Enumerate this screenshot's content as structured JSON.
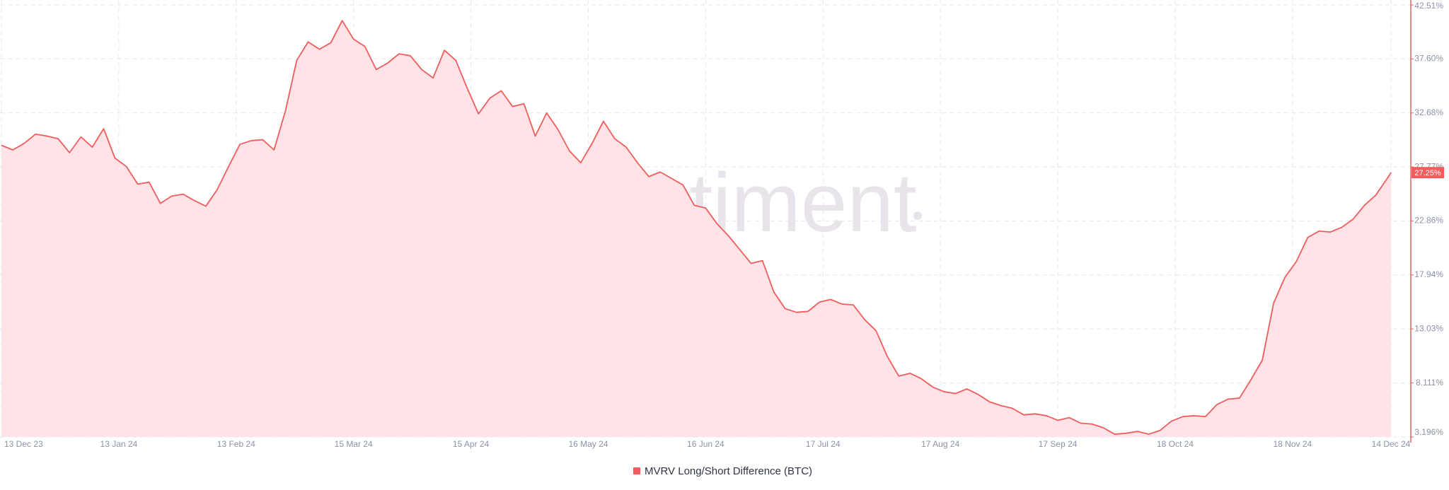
{
  "chart_data": {
    "type": "area",
    "watermark": "santiment",
    "grid": true,
    "x": [
      "2023-12-13",
      "2023-12-16",
      "2023-12-19",
      "2023-12-22",
      "2023-12-25",
      "2023-12-28",
      "2023-12-31",
      "2024-01-03",
      "2024-01-06",
      "2024-01-09",
      "2024-01-12",
      "2024-01-15",
      "2024-01-18",
      "2024-01-21",
      "2024-01-24",
      "2024-01-27",
      "2024-01-30",
      "2024-02-02",
      "2024-02-05",
      "2024-02-08",
      "2024-02-11",
      "2024-02-14",
      "2024-02-17",
      "2024-02-20",
      "2024-02-23",
      "2024-02-26",
      "2024-02-29",
      "2024-03-03",
      "2024-03-06",
      "2024-03-09",
      "2024-03-12",
      "2024-03-15",
      "2024-03-18",
      "2024-03-21",
      "2024-03-24",
      "2024-03-27",
      "2024-03-30",
      "2024-04-02",
      "2024-04-05",
      "2024-04-08",
      "2024-04-11",
      "2024-04-14",
      "2024-04-17",
      "2024-04-20",
      "2024-04-23",
      "2024-04-26",
      "2024-04-29",
      "2024-05-02",
      "2024-05-05",
      "2024-05-08",
      "2024-05-11",
      "2024-05-14",
      "2024-05-17",
      "2024-05-20",
      "2024-05-23",
      "2024-05-26",
      "2024-05-29",
      "2024-06-01",
      "2024-06-04",
      "2024-06-07",
      "2024-06-10",
      "2024-06-13",
      "2024-06-16",
      "2024-06-19",
      "2024-06-22",
      "2024-06-25",
      "2024-06-28",
      "2024-07-01",
      "2024-07-04",
      "2024-07-07",
      "2024-07-10",
      "2024-07-13",
      "2024-07-16",
      "2024-07-19",
      "2024-07-22",
      "2024-07-25",
      "2024-07-28",
      "2024-07-31",
      "2024-08-03",
      "2024-08-06",
      "2024-08-09",
      "2024-08-12",
      "2024-08-15",
      "2024-08-18",
      "2024-08-21",
      "2024-08-24",
      "2024-08-27",
      "2024-08-30",
      "2024-09-02",
      "2024-09-05",
      "2024-09-08",
      "2024-09-11",
      "2024-09-14",
      "2024-09-17",
      "2024-09-20",
      "2024-09-23",
      "2024-09-26",
      "2024-09-29",
      "2024-10-02",
      "2024-10-05",
      "2024-10-08",
      "2024-10-11",
      "2024-10-14",
      "2024-10-17",
      "2024-10-20",
      "2024-10-23",
      "2024-10-26",
      "2024-10-29",
      "2024-11-01",
      "2024-11-04",
      "2024-11-07",
      "2024-11-10",
      "2024-11-13",
      "2024-11-16",
      "2024-11-19",
      "2024-11-22",
      "2024-11-25",
      "2024-11-28",
      "2024-12-01",
      "2024-12-04",
      "2024-12-07",
      "2024-12-10",
      "2024-12-13",
      "2024-12-14"
    ],
    "series": [
      {
        "name": "MVRV Long/Short Difference (BTC)",
        "color": "#f25c5c",
        "fill": "#ffe3e6",
        "values": [
          29.74,
          29.32,
          29.91,
          30.75,
          30.58,
          30.33,
          29.07,
          30.5,
          29.57,
          31.25,
          28.57,
          27.81,
          26.21,
          26.38,
          24.45,
          25.12,
          25.29,
          24.7,
          24.2,
          25.71,
          27.81,
          29.83,
          30.16,
          30.25,
          29.32,
          32.85,
          37.47,
          39.15,
          38.48,
          39.07,
          41.08,
          39.4,
          38.73,
          36.63,
          37.22,
          38.06,
          37.89,
          36.63,
          35.87,
          38.39,
          37.47,
          34.95,
          32.6,
          34.03,
          34.7,
          33.27,
          33.52,
          30.58,
          32.68,
          31.17,
          29.24,
          28.15,
          29.91,
          31.93,
          30.33,
          29.57,
          28.15,
          26.89,
          27.31,
          26.72,
          26.13,
          24.28,
          24.03,
          22.6,
          21.51,
          20.25,
          18.99,
          19.24,
          16.39,
          14.87,
          14.54,
          14.62,
          15.46,
          15.71,
          15.29,
          15.21,
          13.87,
          12.86,
          10.51,
          8.74,
          8.99,
          8.49,
          7.73,
          7.31,
          7.15,
          7.57,
          7.06,
          6.39,
          6.05,
          5.8,
          5.21,
          5.3,
          5.13,
          4.71,
          4.96,
          4.46,
          4.37,
          4.04,
          3.45,
          3.53,
          3.7,
          3.45,
          3.79,
          4.63,
          5.05,
          5.13,
          5.05,
          6.14,
          6.64,
          6.73,
          8.41,
          10.17,
          15.38,
          17.73,
          19.16,
          21.34,
          21.93,
          21.85,
          22.27,
          23.02,
          24.28,
          25.21,
          26.72,
          27.25
        ]
      }
    ],
    "current_value": {
      "value": 27.25,
      "label": "27.25%"
    },
    "xlim": [
      "2023-12-13",
      "2024-12-14"
    ],
    "xticks": [
      {
        "value": "2023-12-13",
        "label": "13 Dec 23"
      },
      {
        "value": "2024-01-13",
        "label": "13 Jan 24"
      },
      {
        "value": "2024-02-13",
        "label": "13 Feb 24"
      },
      {
        "value": "2024-03-15",
        "label": "15 Mar 24"
      },
      {
        "value": "2024-04-15",
        "label": "15 Apr 24"
      },
      {
        "value": "2024-05-16",
        "label": "16 May 24"
      },
      {
        "value": "2024-06-16",
        "label": "16 Jun 24"
      },
      {
        "value": "2024-07-17",
        "label": "17 Jul 24"
      },
      {
        "value": "2024-08-17",
        "label": "17 Aug 24"
      },
      {
        "value": "2024-09-17",
        "label": "17 Sep 24"
      },
      {
        "value": "2024-10-18",
        "label": "18 Oct 24"
      },
      {
        "value": "2024-11-18",
        "label": "18 Nov 24"
      },
      {
        "value": "2024-12-14",
        "label": "14 Dec 24"
      }
    ],
    "ylim": [
      3.196,
      42.51
    ],
    "yticks": [
      {
        "value": 3.196,
        "label": "3.196%"
      },
      {
        "value": 8.111,
        "label": "8.111%"
      },
      {
        "value": 13.03,
        "label": "13.03%"
      },
      {
        "value": 17.94,
        "label": "17.94%"
      },
      {
        "value": 22.86,
        "label": "22.86%"
      },
      {
        "value": 27.77,
        "label": "27.77%"
      },
      {
        "value": 32.68,
        "label": "32.68%"
      },
      {
        "value": 37.6,
        "label": "37.60%"
      },
      {
        "value": 42.51,
        "label": "42.51%"
      }
    ]
  }
}
